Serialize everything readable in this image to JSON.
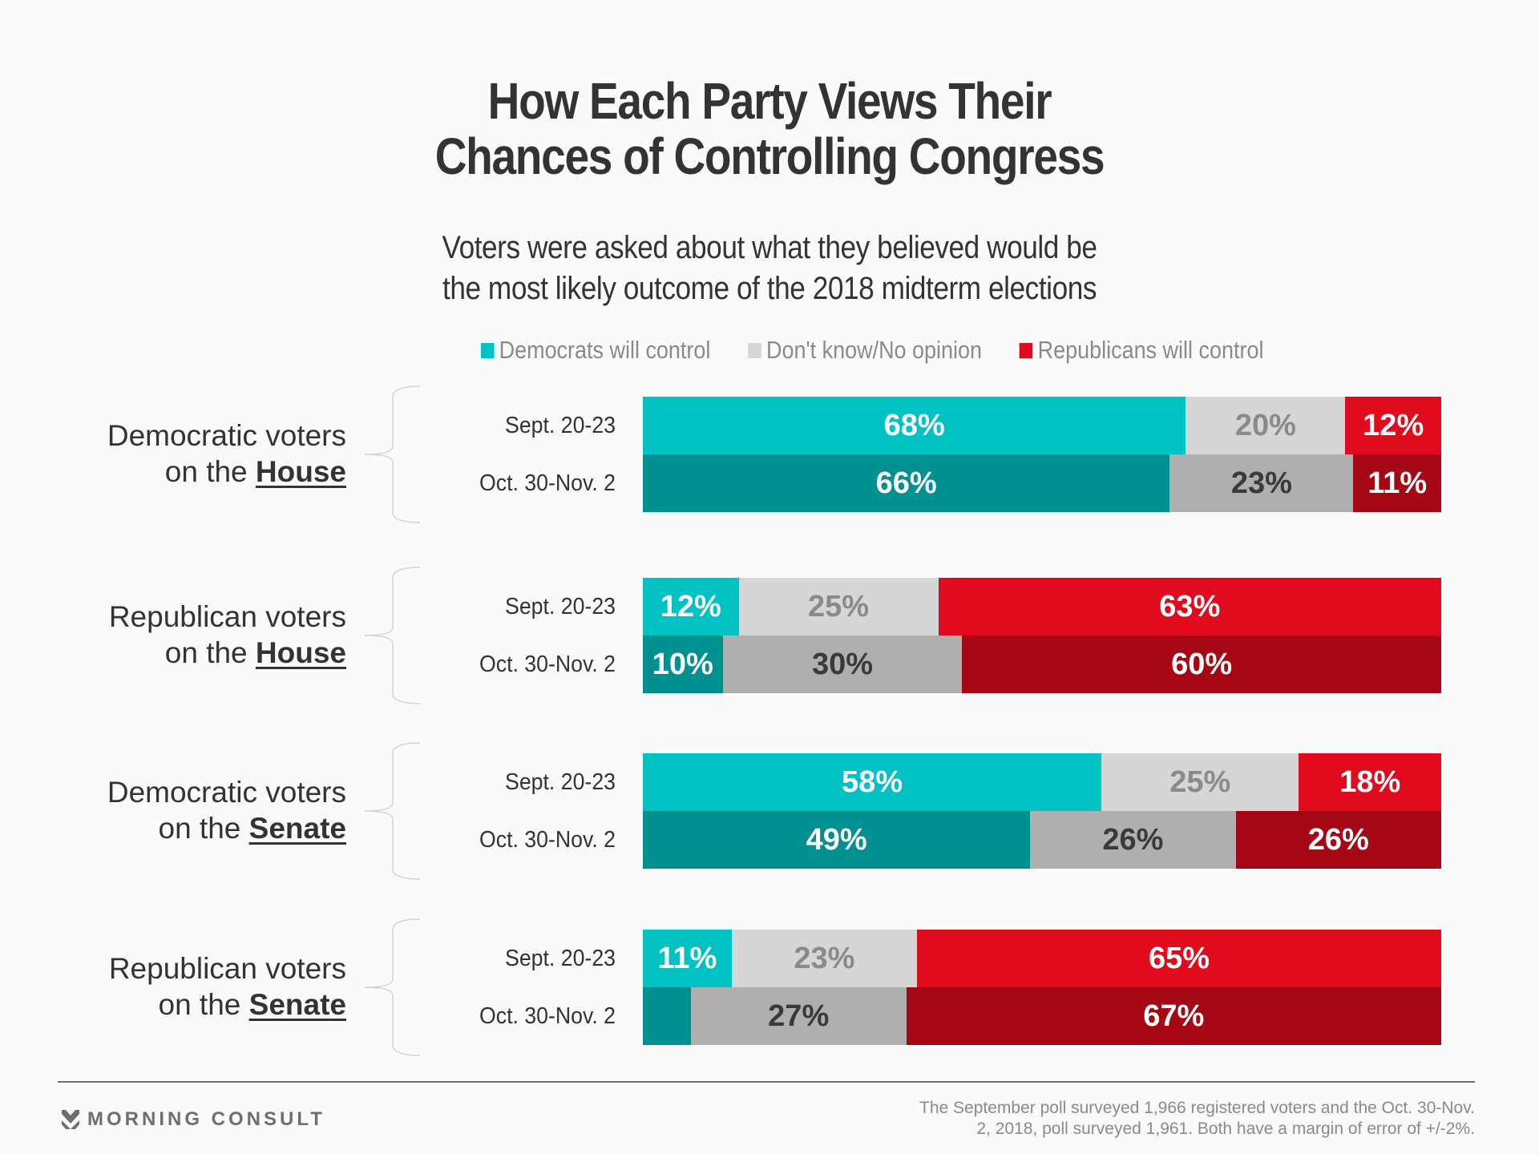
{
  "title_line1": "How Each Party Views Their",
  "title_line2": "Chances of Controlling Congress",
  "subtitle_line1": "Voters were asked about what they believed would be",
  "subtitle_line2": "the most likely outcome of the 2018 midterm elections",
  "legend": [
    {
      "label": "Democrats will control",
      "color": "#00c2c3"
    },
    {
      "label": "Don't know/No opinion",
      "color": "#d6d6d6"
    },
    {
      "label": "Republicans will control",
      "color": "#e00b1c"
    }
  ],
  "colors": {
    "dem_sept": "#00c2c3",
    "dem_oct": "#009090",
    "dk_sept": "#d6d6d6",
    "dk_oct": "#afafaf",
    "rep_sept": "#e00b1c",
    "rep_oct": "#a60714",
    "dk_sept_text": "#8a8a8a",
    "dk_oct_text": "#3a3a3a",
    "label_light": "#ffffff"
  },
  "chart_data": {
    "type": "bar",
    "orientation": "horizontal-stacked-100",
    "title": "How Each Party Views Their Chances of Controlling Congress",
    "subtitle": "Voters were asked about what they believed would be the most likely outcome of the 2018 midterm elections",
    "series_names": [
      "Democrats will control",
      "Don't know/No opinion",
      "Republicans will control"
    ],
    "legend_position": "top-right",
    "groups": [
      {
        "label_prefix": "Democratic voters",
        "label_on": "on the",
        "label_emph": "House",
        "rows": [
          {
            "period": "Sept. 20-23",
            "values": [
              68,
              20,
              12
            ],
            "labels": [
              "68%",
              "20%",
              "12%"
            ]
          },
          {
            "period": "Oct. 30-Nov. 2",
            "values": [
              66,
              23,
              11
            ],
            "labels": [
              "66%",
              "23%",
              "11%"
            ]
          }
        ]
      },
      {
        "label_prefix": "Republican voters",
        "label_on": "on the",
        "label_emph": "House",
        "rows": [
          {
            "period": "Sept. 20-23",
            "values": [
              12,
              25,
              63
            ],
            "labels": [
              "12%",
              "25%",
              "63%"
            ]
          },
          {
            "period": "Oct. 30-Nov. 2",
            "values": [
              10,
              30,
              60
            ],
            "labels": [
              "10%",
              "30%",
              "60%"
            ]
          }
        ]
      },
      {
        "label_prefix": "Democratic voters",
        "label_on": "on the",
        "label_emph": "Senate",
        "rows": [
          {
            "period": "Sept. 20-23",
            "values": [
              58,
              25,
              18
            ],
            "labels": [
              "58%",
              "25%",
              "18%"
            ]
          },
          {
            "period": "Oct. 30-Nov. 2",
            "values": [
              49,
              26,
              26
            ],
            "labels": [
              "49%",
              "26%",
              "26%"
            ]
          }
        ]
      },
      {
        "label_prefix": "Republican voters",
        "label_on": "on the",
        "label_emph": "Senate",
        "rows": [
          {
            "period": "Sept. 20-23",
            "values": [
              11,
              23,
              65
            ],
            "labels": [
              "11%",
              "23%",
              "65%"
            ]
          },
          {
            "period": "Oct. 30-Nov. 2",
            "values": [
              6,
              27,
              67
            ],
            "labels": [
              "",
              "27%",
              "67%"
            ]
          }
        ]
      }
    ]
  },
  "footer": {
    "brand": "MORNING CONSULT",
    "note_line1": "The September poll surveyed 1,966 registered voters and the Oct. 30-Nov.",
    "note_line2": "2, 2018, poll surveyed 1,961. Both have a margin of error of +/-2%."
  }
}
